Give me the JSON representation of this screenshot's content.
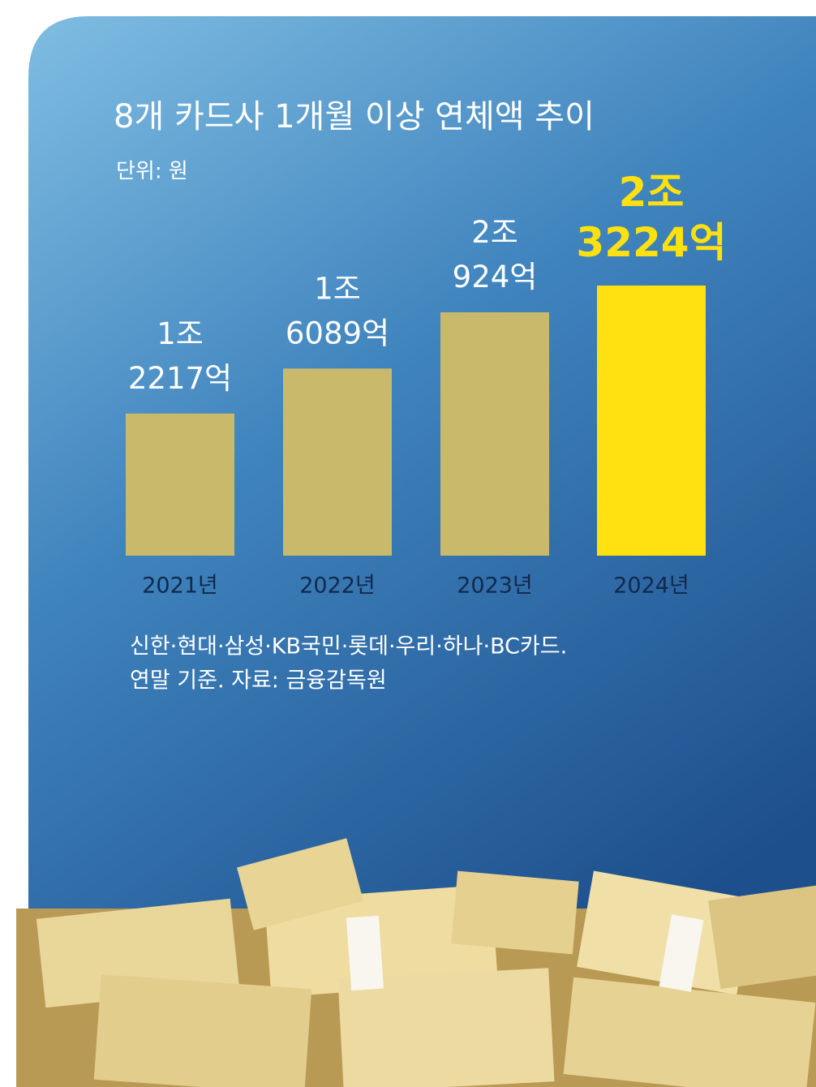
{
  "chart_data": {
    "type": "bar",
    "title": "8개 카드사 1개월 이상 연체액 추이",
    "subtitle": "단위: 원",
    "categories": [
      "2021년",
      "2022년",
      "2023년",
      "2024년"
    ],
    "values": [
      12217,
      16089,
      20924,
      23224
    ],
    "value_labels": [
      "1조 2217억",
      "1조 6089억",
      "2조 924억",
      "2조 3224억"
    ],
    "color": "#c9b96b",
    "highlight_color": "#ffe010",
    "highlight_index": 3,
    "notes": [
      "신한·현대·삼성·KB국민·롯데·우리·하나·BC카드.",
      "연말 기준. 자료: 금융감독원"
    ]
  }
}
